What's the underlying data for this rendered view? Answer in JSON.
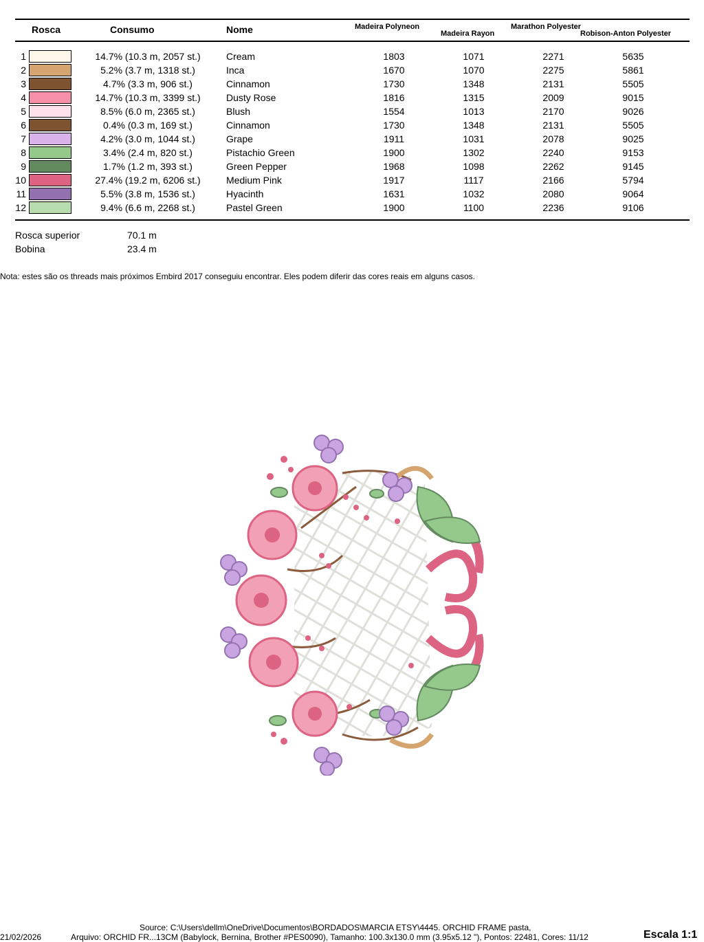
{
  "header": {
    "col_rosca": "Rosca",
    "col_consumo": "Consumo",
    "col_nome": "Nome",
    "col_madeira_polyneon": "Madeira Polyneon",
    "col_madeira_rayon": "Madeira Rayon",
    "col_marathon": "Marathon Polyester",
    "col_robison": "Robison-Anton Polyester"
  },
  "threads": [
    {
      "num": "1",
      "color": "#fdf8ea",
      "consumo": "14.7% (10.3 m, 2057 st.)",
      "nome": "Cream",
      "mp": "1803",
      "mr": "1071",
      "ma": "2271",
      "ra": "5635"
    },
    {
      "num": "2",
      "color": "#d4a56e",
      "consumo": "5.2% (3.7 m, 1318 st.)",
      "nome": "Inca",
      "mp": "1670",
      "mr": "1070",
      "ma": "2275",
      "ra": "5861"
    },
    {
      "num": "3",
      "color": "#7d5330",
      "consumo": "4.7% (3.3 m, 906 st.)",
      "nome": "Cinnamon",
      "mp": "1730",
      "mr": "1348",
      "ma": "2131",
      "ra": "5505"
    },
    {
      "num": "4",
      "color": "#f590a8",
      "consumo": "14.7% (10.3 m, 3399 st.)",
      "nome": "Dusty Rose",
      "mp": "1816",
      "mr": "1315",
      "ma": "2009",
      "ra": "9015"
    },
    {
      "num": "5",
      "color": "#fde2ec",
      "consumo": "8.5% (6.0 m, 2365 st.)",
      "nome": "Blush",
      "mp": "1554",
      "mr": "1013",
      "ma": "2170",
      "ra": "9026"
    },
    {
      "num": "6",
      "color": "#7d5330",
      "consumo": "0.4% (0.3 m, 169 st.)",
      "nome": "Cinnamon",
      "mp": "1730",
      "mr": "1348",
      "ma": "2131",
      "ra": "5505"
    },
    {
      "num": "7",
      "color": "#d9b2ea",
      "consumo": "4.2% (3.0 m, 1044 st.)",
      "nome": "Grape",
      "mp": "1911",
      "mr": "1031",
      "ma": "2078",
      "ra": "9025"
    },
    {
      "num": "8",
      "color": "#95c98c",
      "consumo": "3.4% (2.4 m, 820 st.)",
      "nome": "Pistachio Green",
      "mp": "1900",
      "mr": "1302",
      "ma": "2240",
      "ra": "9153"
    },
    {
      "num": "9",
      "color": "#628a5e",
      "consumo": "1.7% (1.2 m, 393 st.)",
      "nome": "Green Pepper",
      "mp": "1968",
      "mr": "1098",
      "ma": "2262",
      "ra": "9145"
    },
    {
      "num": "10",
      "color": "#dc6482",
      "consumo": "27.4% (19.2 m, 6206 st.)",
      "nome": "Medium Pink",
      "mp": "1917",
      "mr": "1117",
      "ma": "2166",
      "ra": "5794"
    },
    {
      "num": "11",
      "color": "#9371b0",
      "consumo": "5.5% (3.8 m, 1536 st.)",
      "nome": "Hyacinth",
      "mp": "1631",
      "mr": "1032",
      "ma": "2080",
      "ra": "9064"
    },
    {
      "num": "12",
      "color": "#b7dcad",
      "consumo": "9.4% (6.6 m, 2268 st.)",
      "nome": "Pastel Green",
      "mp": "1900",
      "mr": "1100",
      "ma": "2236",
      "ra": "9106"
    }
  ],
  "totals": {
    "top_label": "Rosca superior",
    "top_value": "70.1 m",
    "bobbin_label": "Bobina",
    "bobbin_value": "23.4 m"
  },
  "note": "Nota: estes são os threads mais próximos Embird 2017 conseguiu encontrar. Eles podem diferir das cores reais em alguns casos.",
  "footer": {
    "source": "Source: C:\\Users\\dellm\\OneDrive\\Documentos\\BORDADOS\\MARCIA ETSY\\4445. ORCHID FRAME pasta,",
    "date": "21/02/2026",
    "file_info": "Arquivo: ORCHID FR...13CM (Babylock, Bernina, Brother #PES0090), Tamanho: 100.3x130.0 mm (3.95x5.12 \"), Pontos: 22481, Cores: 11/12",
    "scale": "Escala 1:1"
  }
}
